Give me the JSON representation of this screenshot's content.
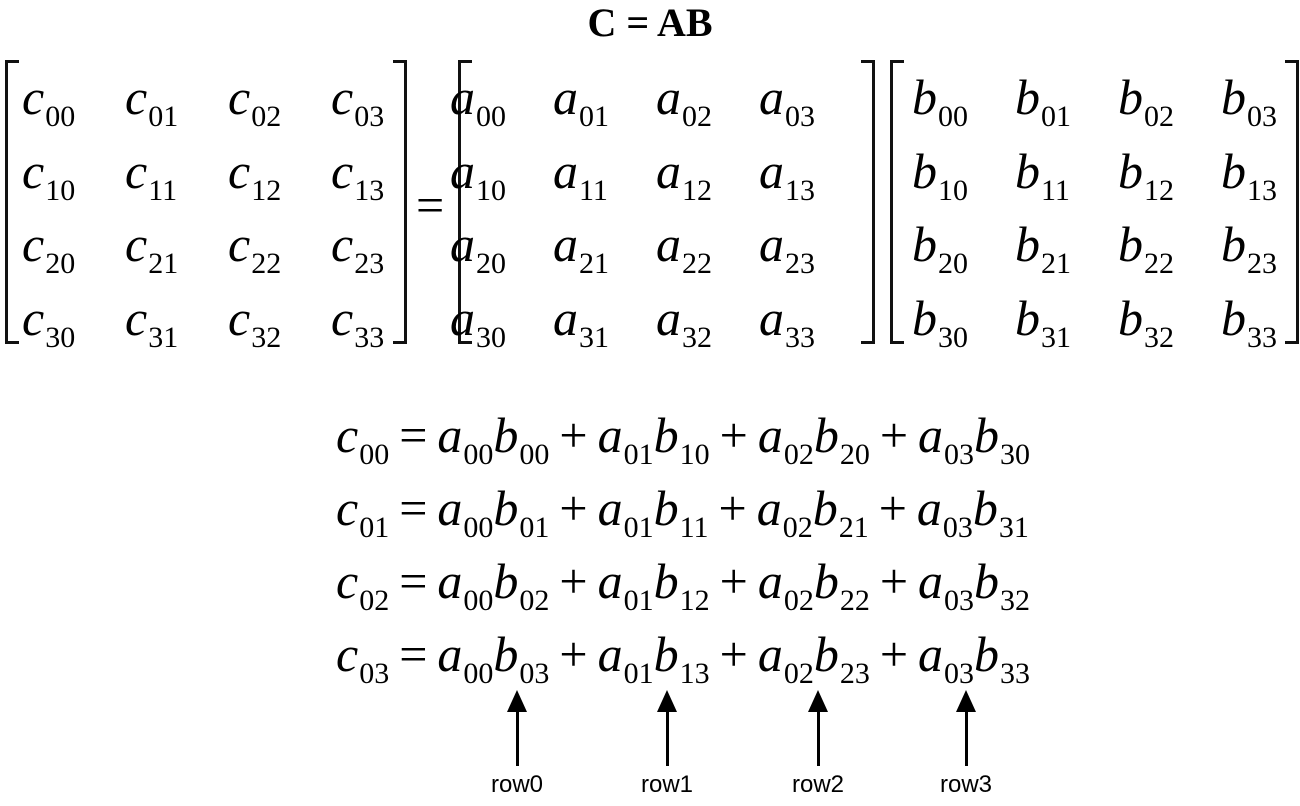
{
  "title": "C = AB",
  "equals": "=",
  "matrices": [
    {
      "name": "C",
      "letter": "c",
      "entries": [
        [
          "00",
          "01",
          "02",
          "03"
        ],
        [
          "10",
          "11",
          "12",
          "13"
        ],
        [
          "20",
          "21",
          "22",
          "23"
        ],
        [
          "30",
          "31",
          "32",
          "33"
        ]
      ]
    },
    {
      "name": "A",
      "letter": "a",
      "entries": [
        [
          "00",
          "01",
          "02",
          "03"
        ],
        [
          "10",
          "11",
          "12",
          "13"
        ],
        [
          "20",
          "21",
          "22",
          "23"
        ],
        [
          "30",
          "31",
          "32",
          "33"
        ]
      ]
    },
    {
      "name": "B",
      "letter": "b",
      "entries": [
        [
          "00",
          "01",
          "02",
          "03"
        ],
        [
          "10",
          "11",
          "12",
          "13"
        ],
        [
          "20",
          "21",
          "22",
          "23"
        ],
        [
          "30",
          "31",
          "32",
          "33"
        ]
      ]
    }
  ],
  "equations": [
    {
      "lhs": "00",
      "terms": [
        [
          "00",
          "00"
        ],
        [
          "01",
          "10"
        ],
        [
          "02",
          "20"
        ],
        [
          "03",
          "30"
        ]
      ]
    },
    {
      "lhs": "01",
      "terms": [
        [
          "00",
          "01"
        ],
        [
          "01",
          "11"
        ],
        [
          "02",
          "21"
        ],
        [
          "03",
          "31"
        ]
      ]
    },
    {
      "lhs": "02",
      "terms": [
        [
          "00",
          "02"
        ],
        [
          "01",
          "12"
        ],
        [
          "02",
          "22"
        ],
        [
          "03",
          "32"
        ]
      ]
    },
    {
      "lhs": "03",
      "terms": [
        [
          "00",
          "03"
        ],
        [
          "01",
          "13"
        ],
        [
          "02",
          "23"
        ],
        [
          "03",
          "33"
        ]
      ]
    }
  ],
  "operators": {
    "equals": "=",
    "plus": "+"
  },
  "row_labels": [
    "row0",
    "row1",
    "row2",
    "row3"
  ]
}
